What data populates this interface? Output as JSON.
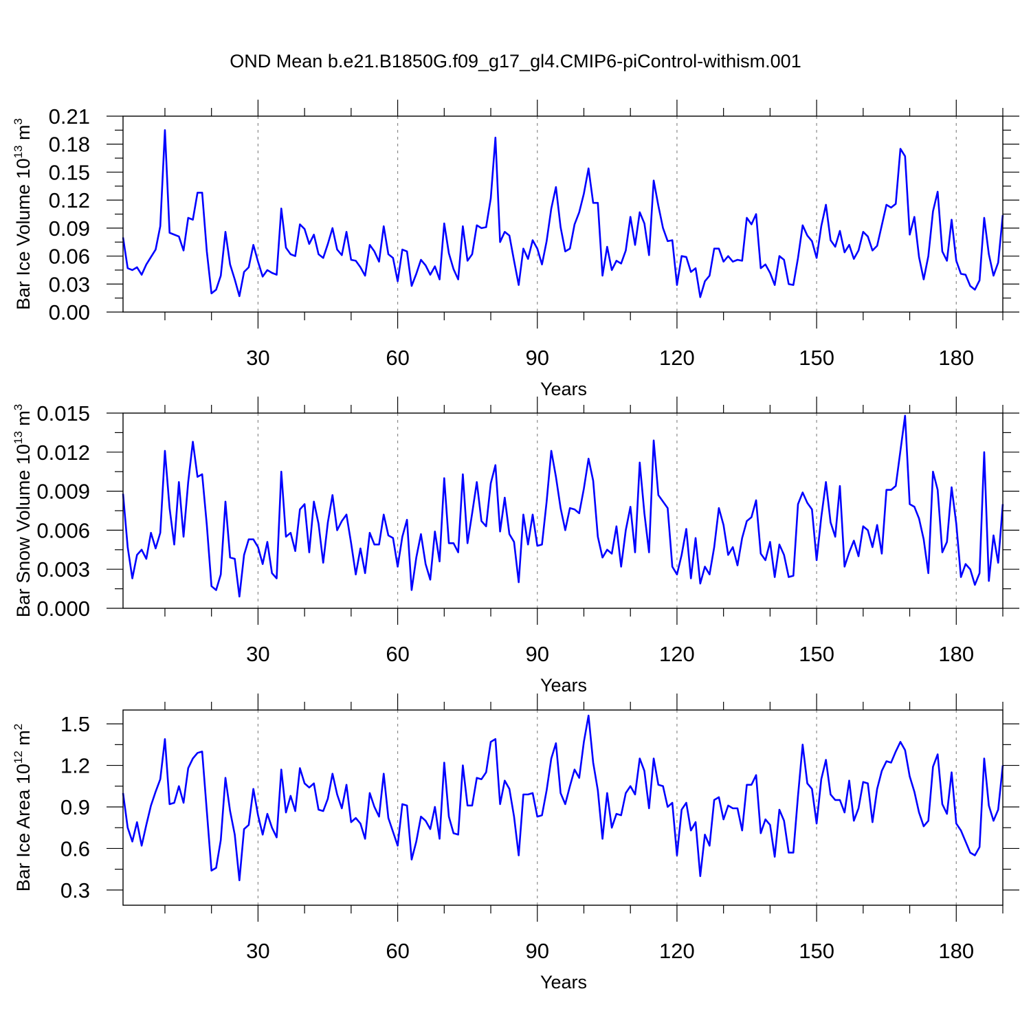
{
  "title": "OND Mean b.e21.B1850G.f09_g17_gl4.CMIP6-piControl-withism.001",
  "chart_data": [
    {
      "type": "line",
      "title": "",
      "xlabel": "Years",
      "ylabel": "Bar Ice Volume 10",
      "ylabel_exp": "13",
      "ylabel_unit": " m",
      "ylabel_unit_exp": "3",
      "xlim": [
        1,
        190
      ],
      "ylim": [
        0,
        0.21
      ],
      "xticks": [
        30,
        60,
        90,
        120,
        150,
        180
      ],
      "yticks": [
        0.0,
        0.03,
        0.06,
        0.09,
        0.12,
        0.15,
        0.18,
        0.21
      ],
      "yticklabels": [
        "0.00",
        "0.03",
        "0.06",
        "0.09",
        "0.12",
        "0.15",
        "0.18",
        "0.21"
      ],
      "grid": "x-dashed",
      "color": "#0000ff",
      "x_start": 1,
      "values": [
        0.08,
        0.047,
        0.045,
        0.048,
        0.04,
        0.051,
        0.059,
        0.067,
        0.092,
        0.195,
        0.085,
        0.083,
        0.081,
        0.066,
        0.101,
        0.099,
        0.128,
        0.128,
        0.065,
        0.02,
        0.024,
        0.039,
        0.086,
        0.051,
        0.035,
        0.017,
        0.043,
        0.048,
        0.072,
        0.054,
        0.038,
        0.045,
        0.042,
        0.04,
        0.111,
        0.069,
        0.062,
        0.06,
        0.094,
        0.089,
        0.073,
        0.083,
        0.062,
        0.058,
        0.073,
        0.09,
        0.067,
        0.061,
        0.086,
        0.056,
        0.055,
        0.048,
        0.039,
        0.072,
        0.065,
        0.054,
        0.092,
        0.062,
        0.058,
        0.033,
        0.067,
        0.065,
        0.028,
        0.041,
        0.056,
        0.05,
        0.04,
        0.049,
        0.035,
        0.095,
        0.063,
        0.046,
        0.035,
        0.092,
        0.055,
        0.062,
        0.093,
        0.09,
        0.091,
        0.122,
        0.187,
        0.075,
        0.086,
        0.082,
        0.055,
        0.029,
        0.068,
        0.057,
        0.077,
        0.068,
        0.051,
        0.076,
        0.111,
        0.134,
        0.091,
        0.065,
        0.068,
        0.094,
        0.107,
        0.127,
        0.154,
        0.117,
        0.117,
        0.039,
        0.07,
        0.045,
        0.055,
        0.052,
        0.066,
        0.102,
        0.072,
        0.107,
        0.095,
        0.061,
        0.141,
        0.114,
        0.09,
        0.076,
        0.077,
        0.029,
        0.06,
        0.059,
        0.043,
        0.047,
        0.016,
        0.033,
        0.039,
        0.068,
        0.068,
        0.054,
        0.06,
        0.054,
        0.056,
        0.055,
        0.101,
        0.094,
        0.105,
        0.047,
        0.051,
        0.042,
        0.029,
        0.06,
        0.056,
        0.03,
        0.029,
        0.058,
        0.093,
        0.082,
        0.076,
        0.058,
        0.092,
        0.115,
        0.077,
        0.07,
        0.087,
        0.064,
        0.072,
        0.057,
        0.066,
        0.086,
        0.081,
        0.066,
        0.071,
        0.093,
        0.115,
        0.112,
        0.116,
        0.175,
        0.167,
        0.083,
        0.102,
        0.059,
        0.035,
        0.06,
        0.108,
        0.129,
        0.065,
        0.055,
        0.099,
        0.055,
        0.041,
        0.04,
        0.028,
        0.024,
        0.034,
        0.101,
        0.062,
        0.039,
        0.053,
        0.104
      ]
    },
    {
      "type": "line",
      "title": "",
      "xlabel": "Years",
      "ylabel": "Bar Snow Volume 10",
      "ylabel_exp": "13",
      "ylabel_unit": " m",
      "ylabel_unit_exp": "3",
      "xlim": [
        1,
        190
      ],
      "ylim": [
        0,
        0.015
      ],
      "xticks": [
        30,
        60,
        90,
        120,
        150,
        180
      ],
      "yticks": [
        0.0,
        0.003,
        0.006,
        0.009,
        0.012,
        0.015
      ],
      "yticklabels": [
        "0.000",
        "0.003",
        "0.006",
        "0.009",
        "0.012",
        "0.015"
      ],
      "grid": "x-dashed",
      "color": "#0000ff",
      "x_start": 1,
      "values": [
        0.0088,
        0.0047,
        0.0023,
        0.0041,
        0.0045,
        0.0038,
        0.0058,
        0.0046,
        0.0058,
        0.0121,
        0.0077,
        0.0049,
        0.0097,
        0.0055,
        0.0097,
        0.0128,
        0.0101,
        0.0103,
        0.0064,
        0.0017,
        0.0014,
        0.0026,
        0.0082,
        0.0039,
        0.0038,
        0.0009,
        0.0041,
        0.0053,
        0.0053,
        0.0047,
        0.0034,
        0.0051,
        0.0027,
        0.0023,
        0.0105,
        0.0055,
        0.0058,
        0.0044,
        0.0076,
        0.008,
        0.0043,
        0.0082,
        0.0065,
        0.0035,
        0.0066,
        0.0087,
        0.006,
        0.0067,
        0.0072,
        0.005,
        0.0026,
        0.0046,
        0.0027,
        0.0058,
        0.0049,
        0.0049,
        0.0072,
        0.0056,
        0.0054,
        0.0032,
        0.0055,
        0.0068,
        0.0014,
        0.0039,
        0.0057,
        0.0034,
        0.0022,
        0.0059,
        0.0036,
        0.01,
        0.005,
        0.005,
        0.0043,
        0.0103,
        0.005,
        0.0073,
        0.0097,
        0.0067,
        0.0063,
        0.0096,
        0.011,
        0.0059,
        0.0085,
        0.0057,
        0.0051,
        0.002,
        0.0072,
        0.0049,
        0.0072,
        0.0048,
        0.0049,
        0.0082,
        0.0121,
        0.0101,
        0.0077,
        0.006,
        0.0077,
        0.0076,
        0.0073,
        0.0092,
        0.0115,
        0.0098,
        0.0055,
        0.0039,
        0.0045,
        0.0042,
        0.0063,
        0.0032,
        0.006,
        0.0078,
        0.0043,
        0.0112,
        0.0073,
        0.0043,
        0.0129,
        0.0087,
        0.0082,
        0.0077,
        0.0032,
        0.0026,
        0.0041,
        0.0061,
        0.0023,
        0.0054,
        0.0019,
        0.0032,
        0.0026,
        0.0047,
        0.0077,
        0.0064,
        0.0041,
        0.0047,
        0.0033,
        0.0054,
        0.0067,
        0.007,
        0.0083,
        0.0042,
        0.0037,
        0.0051,
        0.0024,
        0.0049,
        0.0041,
        0.0024,
        0.0025,
        0.008,
        0.0089,
        0.0081,
        0.0076,
        0.0037,
        0.007,
        0.0097,
        0.0066,
        0.0055,
        0.0094,
        0.0032,
        0.0043,
        0.0052,
        0.004,
        0.0063,
        0.006,
        0.0047,
        0.0064,
        0.0042,
        0.0091,
        0.0091,
        0.0094,
        0.0121,
        0.0148,
        0.008,
        0.0078,
        0.0069,
        0.0053,
        0.0027,
        0.0105,
        0.0091,
        0.0043,
        0.0051,
        0.0093,
        0.0065,
        0.0024,
        0.0034,
        0.003,
        0.0018,
        0.0027,
        0.012,
        0.0021,
        0.0056,
        0.0035,
        0.008
      ]
    },
    {
      "type": "line",
      "title": "",
      "xlabel": "Years",
      "ylabel": "Bar Ice Area 10",
      "ylabel_exp": "12",
      "ylabel_unit": " m",
      "ylabel_unit_exp": "2",
      "xlim": [
        1,
        190
      ],
      "ylim": [
        0.19,
        1.6
      ],
      "xticks": [
        30,
        60,
        90,
        120,
        150,
        180
      ],
      "yticks": [
        0.3,
        0.6,
        0.9,
        1.2,
        1.5
      ],
      "yticklabels": [
        "0.3",
        "0.6",
        "0.9",
        "1.2",
        "1.5"
      ],
      "grid": "x-dashed",
      "color": "#0000ff",
      "x_start": 1,
      "values": [
        1.0,
        0.75,
        0.65,
        0.79,
        0.62,
        0.77,
        0.91,
        1.01,
        1.1,
        1.39,
        0.92,
        0.93,
        1.05,
        0.93,
        1.18,
        1.25,
        1.29,
        1.3,
        0.87,
        0.44,
        0.46,
        0.66,
        1.11,
        0.87,
        0.7,
        0.37,
        0.74,
        0.77,
        1.03,
        0.84,
        0.7,
        0.85,
        0.75,
        0.68,
        1.17,
        0.86,
        0.98,
        0.87,
        1.18,
        1.07,
        1.04,
        1.07,
        0.88,
        0.87,
        0.96,
        1.14,
        0.99,
        0.89,
        1.06,
        0.79,
        0.82,
        0.78,
        0.67,
        1.0,
        0.9,
        0.83,
        1.14,
        0.82,
        0.72,
        0.62,
        0.92,
        0.91,
        0.52,
        0.65,
        0.83,
        0.8,
        0.74,
        0.9,
        0.67,
        1.22,
        0.83,
        0.71,
        0.7,
        1.2,
        0.91,
        0.91,
        1.11,
        1.1,
        1.15,
        1.37,
        1.39,
        0.92,
        1.09,
        1.03,
        0.83,
        0.55,
        0.99,
        0.99,
        1.0,
        0.83,
        0.84,
        1.02,
        1.25,
        1.36,
        1.0,
        0.92,
        1.05,
        1.17,
        1.11,
        1.37,
        1.56,
        1.22,
        1.02,
        0.67,
        1.0,
        0.75,
        0.85,
        0.84,
        1.0,
        1.05,
        0.99,
        1.25,
        1.16,
        0.89,
        1.25,
        1.06,
        1.05,
        0.9,
        0.93,
        0.55,
        0.88,
        0.93,
        0.73,
        0.79,
        0.4,
        0.7,
        0.62,
        0.95,
        0.97,
        0.81,
        0.91,
        0.89,
        0.89,
        0.73,
        1.06,
        1.06,
        1.13,
        0.71,
        0.81,
        0.77,
        0.54,
        0.88,
        0.8,
        0.57,
        0.57,
        0.98,
        1.35,
        1.07,
        1.03,
        0.78,
        1.1,
        1.24,
        0.99,
        0.95,
        0.95,
        0.86,
        1.09,
        0.8,
        0.89,
        1.08,
        1.07,
        0.79,
        1.03,
        1.16,
        1.23,
        1.22,
        1.3,
        1.37,
        1.31,
        1.12,
        1.01,
        0.86,
        0.76,
        0.8,
        1.19,
        1.28,
        0.92,
        0.85,
        1.15,
        0.78,
        0.73,
        0.65,
        0.57,
        0.55,
        0.61,
        1.25,
        0.91,
        0.8,
        0.88,
        1.2
      ]
    }
  ]
}
